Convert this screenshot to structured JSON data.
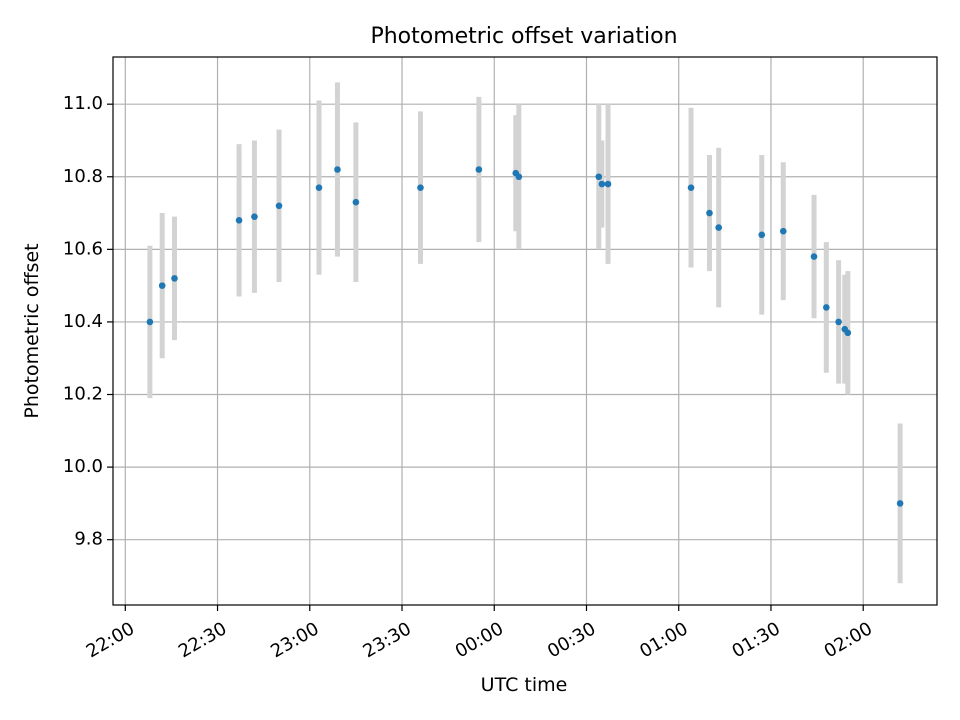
{
  "chart_data": {
    "type": "scatter",
    "title": "Photometric offset variation",
    "xlabel": "UTC time",
    "ylabel": "Photometric offset",
    "x_ticks": [
      "22:00",
      "22:30",
      "23:00",
      "23:30",
      "00:00",
      "00:30",
      "01:00",
      "01:30",
      "02:00"
    ],
    "y_ticks": [
      "9.8",
      "10.0",
      "10.2",
      "10.4",
      "10.6",
      "10.8",
      "11.0"
    ],
    "xlim": [
      "21:56",
      "02:24"
    ],
    "ylim": [
      9.62,
      11.13
    ],
    "grid": true,
    "marker_color": "#1f77b4",
    "errorbar_color": "#d3d3d3",
    "points": [
      {
        "t": "22:08",
        "y": 10.4,
        "err": 0.21
      },
      {
        "t": "22:12",
        "y": 10.5,
        "err": 0.2
      },
      {
        "t": "22:16",
        "y": 10.52,
        "err": 0.17
      },
      {
        "t": "22:37",
        "y": 10.68,
        "err": 0.21
      },
      {
        "t": "22:42",
        "y": 10.69,
        "err": 0.21
      },
      {
        "t": "22:50",
        "y": 10.72,
        "err": 0.21
      },
      {
        "t": "23:03",
        "y": 10.77,
        "err": 0.24
      },
      {
        "t": "23:09",
        "y": 10.82,
        "err": 0.24
      },
      {
        "t": "23:15",
        "y": 10.73,
        "err": 0.22
      },
      {
        "t": "23:36",
        "y": 10.77,
        "err": 0.21
      },
      {
        "t": "23:55",
        "y": 10.82,
        "err": 0.2
      },
      {
        "t": "00:07",
        "y": 10.81,
        "err": 0.16
      },
      {
        "t": "00:08",
        "y": 10.8,
        "err": 0.2
      },
      {
        "t": "00:34",
        "y": 10.8,
        "err": 0.2
      },
      {
        "t": "00:35",
        "y": 10.78,
        "err": 0.12
      },
      {
        "t": "00:37",
        "y": 10.78,
        "err": 0.22
      },
      {
        "t": "01:04",
        "y": 10.77,
        "err": 0.22
      },
      {
        "t": "01:10",
        "y": 10.7,
        "err": 0.16
      },
      {
        "t": "01:13",
        "y": 10.66,
        "err": 0.22
      },
      {
        "t": "01:27",
        "y": 10.64,
        "err": 0.22
      },
      {
        "t": "01:34",
        "y": 10.65,
        "err": 0.19
      },
      {
        "t": "01:44",
        "y": 10.58,
        "err": 0.17
      },
      {
        "t": "01:48",
        "y": 10.44,
        "err": 0.18
      },
      {
        "t": "01:52",
        "y": 10.4,
        "err": 0.17
      },
      {
        "t": "01:54",
        "y": 10.38,
        "err": 0.15
      },
      {
        "t": "01:55",
        "y": 10.37,
        "err": 0.17
      },
      {
        "t": "02:12",
        "y": 9.9,
        "err": 0.22
      }
    ]
  }
}
